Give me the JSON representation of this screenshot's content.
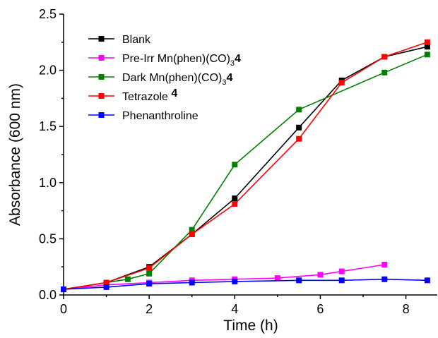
{
  "chart_data": {
    "type": "line",
    "xlabel": "Time (h)",
    "ylabel": "Absorbance (600 nm)",
    "xlim": [
      0,
      8.75
    ],
    "ylim": [
      0,
      2.5
    ],
    "xticks": [
      0,
      2,
      4,
      6,
      8
    ],
    "yticks": [
      0.0,
      0.5,
      1.0,
      1.5,
      2.0,
      2.5
    ],
    "xtick_labels": [
      "0",
      "2",
      "4",
      "6",
      "8"
    ],
    "ytick_labels": [
      "0.0",
      "0.5",
      "1.0",
      "1.5",
      "2.0",
      "2.5"
    ],
    "legend_position": "top-left",
    "series": [
      {
        "name": "Blank",
        "legend": [
          {
            "text": "Blank"
          }
        ],
        "color": "#000000",
        "x": [
          0,
          1,
          2,
          3,
          4,
          5.5,
          6.5,
          7.5,
          8.5
        ],
        "y": [
          0.05,
          0.11,
          0.25,
          0.54,
          0.86,
          1.49,
          1.91,
          2.12,
          2.21
        ]
      },
      {
        "name": "Pre-Irr Mn(phen)(CO)34",
        "legend": [
          {
            "text": "Pre-Irr Mn(phen)(CO)"
          },
          {
            "text": "3",
            "style": "sub"
          },
          {
            "text": "4",
            "style": "bold"
          }
        ],
        "color": "#ff00ff",
        "x": [
          0,
          1,
          2,
          3,
          4,
          5,
          6,
          6.5,
          7.5
        ],
        "y": [
          0.05,
          0.09,
          0.11,
          0.13,
          0.14,
          0.15,
          0.18,
          0.21,
          0.27
        ]
      },
      {
        "name": "Dark Mn(phen)(CO)34",
        "legend": [
          {
            "text": "Dark Mn(phen)(CO)"
          },
          {
            "text": "3",
            "style": "sub"
          },
          {
            "text": "4",
            "style": "bold"
          }
        ],
        "color": "#008000",
        "x": [
          0,
          1.5,
          2,
          3,
          4,
          5.5,
          7.5,
          8.5
        ],
        "y": [
          0.05,
          0.14,
          0.19,
          0.58,
          1.16,
          1.65,
          1.98,
          2.14
        ]
      },
      {
        "name": "Tetrazole 4",
        "legend": [
          {
            "text": "Tetrazole "
          },
          {
            "text": "4",
            "style": "bold"
          }
        ],
        "color": "#ff0000",
        "x": [
          0,
          1,
          2,
          3,
          4,
          5.5,
          6.5,
          7.5,
          8.5
        ],
        "y": [
          0.05,
          0.11,
          0.24,
          0.54,
          0.81,
          1.39,
          1.89,
          2.12,
          2.25
        ]
      },
      {
        "name": "Phenanthroline",
        "legend": [
          {
            "text": "Phenanthroline"
          }
        ],
        "color": "#0000ff",
        "x": [
          0,
          1,
          2,
          3,
          4,
          5.5,
          6.5,
          7.5,
          8.5
        ],
        "y": [
          0.05,
          0.07,
          0.1,
          0.11,
          0.12,
          0.13,
          0.13,
          0.14,
          0.13
        ]
      }
    ]
  }
}
